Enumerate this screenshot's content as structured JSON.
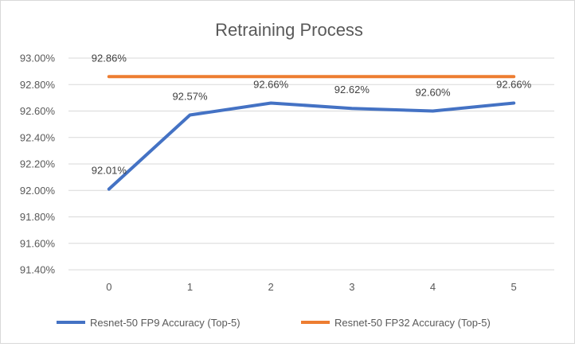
{
  "chart_data": {
    "type": "line",
    "title": "Retraining Process",
    "xlabel": "",
    "ylabel": "",
    "categories": [
      0,
      1,
      2,
      3,
      4,
      5
    ],
    "ylim": [
      91.4,
      93.0
    ],
    "ytick_step": 0.2,
    "ytick_labels": [
      "91.40%",
      "91.60%",
      "91.80%",
      "92.00%",
      "92.20%",
      "92.40%",
      "92.60%",
      "92.80%",
      "93.00%"
    ],
    "grid": true,
    "legend_position": "bottom",
    "series": [
      {
        "name": "Resnet-50 FP9 Accuracy (Top-5)",
        "color": "#4472C4",
        "values": [
          92.01,
          92.57,
          92.66,
          92.62,
          92.6,
          92.66
        ],
        "labels": [
          "92.01%",
          "92.57%",
          "92.66%",
          "92.62%",
          "92.60%",
          "92.66%"
        ]
      },
      {
        "name": "Resnet-50 FP32 Accuracy (Top-5)",
        "color": "#ED7D31",
        "values": [
          92.86,
          92.86,
          92.86,
          92.86,
          92.86,
          92.86
        ],
        "labels": [
          "92.86%"
        ]
      }
    ]
  }
}
